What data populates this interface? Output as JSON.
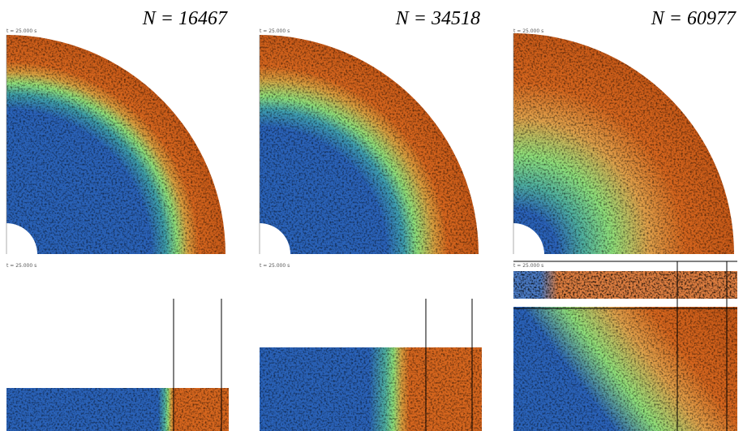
{
  "panels": [
    {
      "label": "N = 16467",
      "top_time": "t = 25.000 s",
      "bottom_time": "t = 25.000 s"
    },
    {
      "label": "N = 34518",
      "top_time": "t = 25.000 s",
      "bottom_time": "t = 25.000 s"
    },
    {
      "label": "N = 60977",
      "top_time": "t = 25.000 s",
      "bottom_time": "t = 25.000 s"
    }
  ]
}
